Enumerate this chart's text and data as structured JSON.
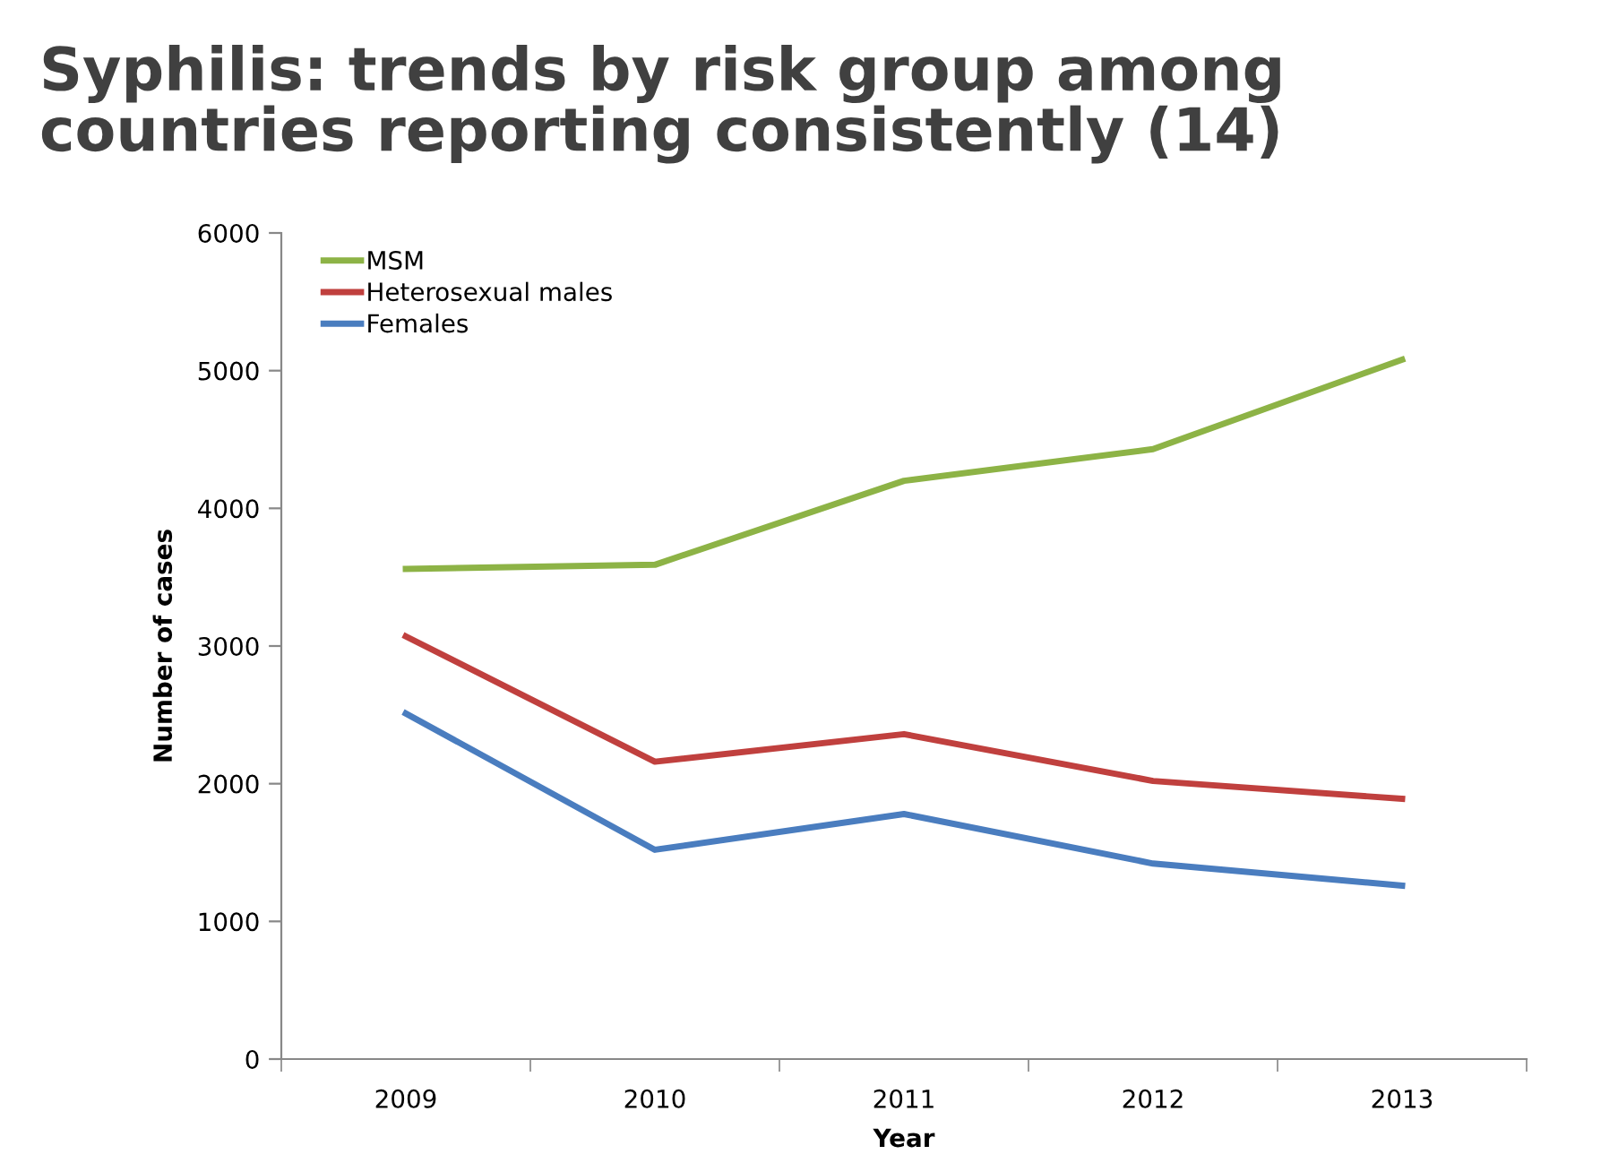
{
  "chart_data": {
    "type": "line",
    "title": "Syphilis: trends by risk group among\ncountries reporting consistently (14)",
    "xlabel": "Year",
    "ylabel": "Number of cases",
    "categories": [
      "2009",
      "2010",
      "2011",
      "2012",
      "2013"
    ],
    "series": [
      {
        "name": "MSM",
        "color": "#8db346",
        "values": [
          3560,
          3590,
          4200,
          4430,
          5080
        ]
      },
      {
        "name": "Heterosexual males",
        "color": "#c0403e",
        "values": [
          3070,
          2160,
          2360,
          2020,
          1890
        ]
      },
      {
        "name": "Females",
        "color": "#4a7dbf",
        "values": [
          2510,
          1520,
          1780,
          1420,
          1260
        ]
      }
    ],
    "ylim": [
      0,
      6000
    ],
    "yticks": [
      0,
      1000,
      2000,
      3000,
      4000,
      5000,
      6000
    ],
    "grid": false,
    "legend": "top left",
    "marker": "none",
    "line_style": "solid"
  }
}
